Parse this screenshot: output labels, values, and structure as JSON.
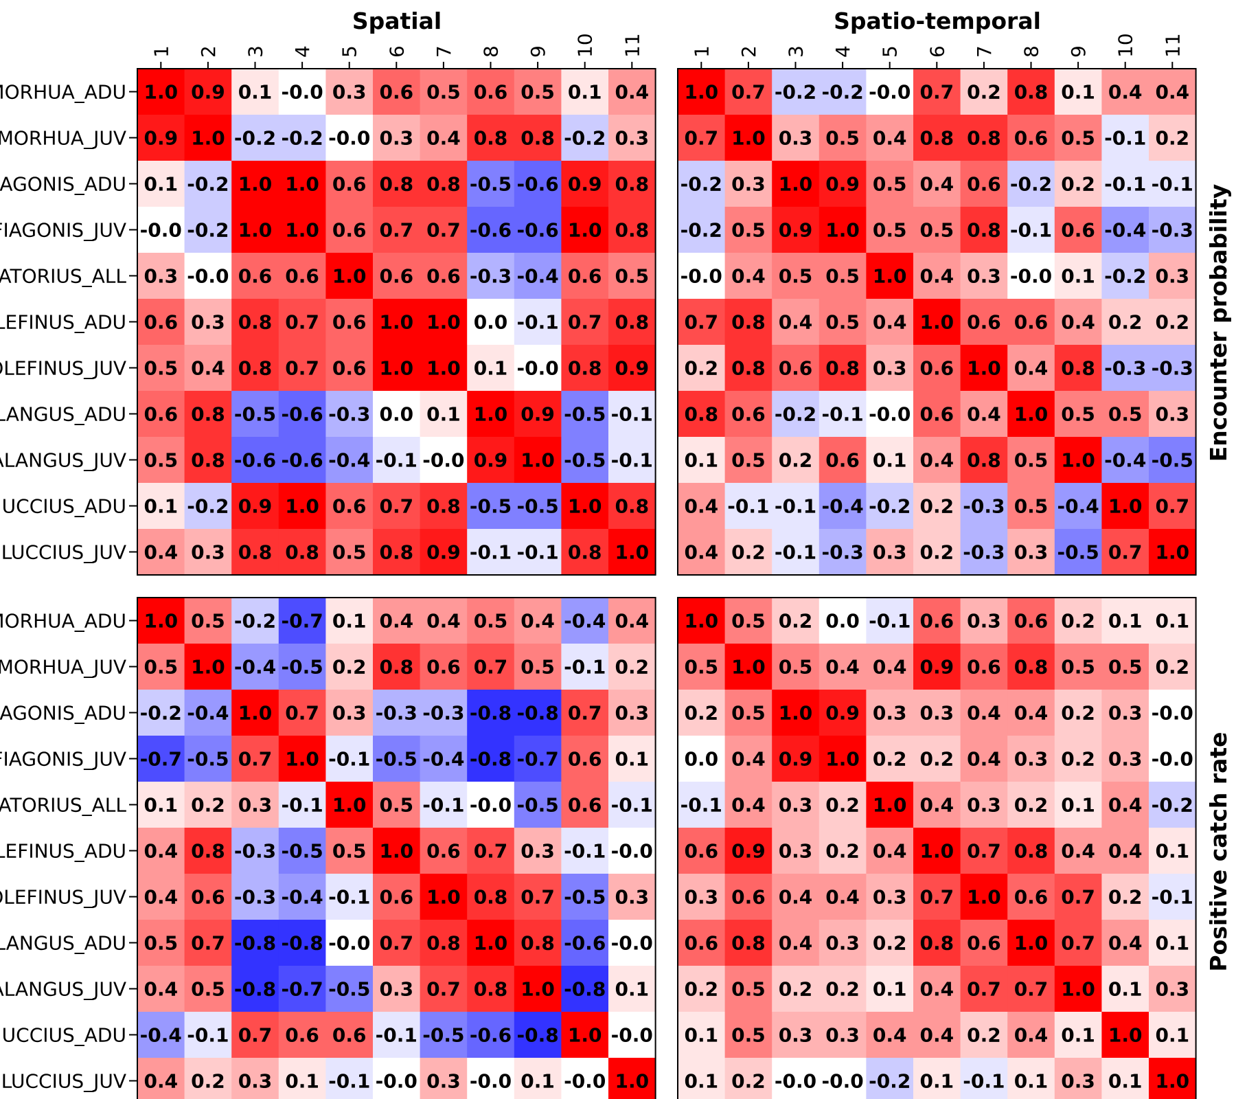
{
  "column_titles": [
    "Spatial",
    "Spatio-temporal"
  ],
  "row_titles": [
    "Encounter probability",
    "Positive catch rate"
  ],
  "colors": {
    "negative": "#0000ff",
    "zero": "#ffffff",
    "positive": "#ff0000",
    "border": "#000000"
  },
  "chart_data": [
    {
      "type": "heatmap",
      "panel": "Spatial / Encounter probability",
      "x_categories": [
        "1",
        "2",
        "3",
        "4",
        "5",
        "6",
        "7",
        "8",
        "9",
        "10",
        "11"
      ],
      "y_categories": [
        "MORHUA_ADU",
        "MORHUA_JUV",
        "AGONIS_ADU",
        "FIAGONIS_JUV",
        "ATORIUS_ALL",
        "LEFINUS_ADU",
        "OLEFINUS_JUV",
        "LANGUS_ADU",
        "ALANGUS_JUV",
        "UCCIUS_ADU",
        "LUCCIUS_JUV"
      ],
      "value_range": [
        -1,
        1
      ],
      "values": [
        [
          "1.0",
          "0.9",
          "0.1",
          "-0.0",
          "0.3",
          "0.6",
          "0.5",
          "0.6",
          "0.5",
          "0.1",
          "0.4"
        ],
        [
          "0.9",
          "1.0",
          "-0.2",
          "-0.2",
          "-0.0",
          "0.3",
          "0.4",
          "0.8",
          "0.8",
          "-0.2",
          "0.3"
        ],
        [
          "0.1",
          "-0.2",
          "1.0",
          "1.0",
          "0.6",
          "0.8",
          "0.8",
          "-0.5",
          "-0.6",
          "0.9",
          "0.8"
        ],
        [
          "-0.0",
          "-0.2",
          "1.0",
          "1.0",
          "0.6",
          "0.7",
          "0.7",
          "-0.6",
          "-0.6",
          "1.0",
          "0.8"
        ],
        [
          "0.3",
          "-0.0",
          "0.6",
          "0.6",
          "1.0",
          "0.6",
          "0.6",
          "-0.3",
          "-0.4",
          "0.6",
          "0.5"
        ],
        [
          "0.6",
          "0.3",
          "0.8",
          "0.7",
          "0.6",
          "1.0",
          "1.0",
          "0.0",
          "-0.1",
          "0.7",
          "0.8"
        ],
        [
          "0.5",
          "0.4",
          "0.8",
          "0.7",
          "0.6",
          "1.0",
          "1.0",
          "0.1",
          "-0.0",
          "0.8",
          "0.9"
        ],
        [
          "0.6",
          "0.8",
          "-0.5",
          "-0.6",
          "-0.3",
          "0.0",
          "0.1",
          "1.0",
          "0.9",
          "-0.5",
          "-0.1"
        ],
        [
          "0.5",
          "0.8",
          "-0.6",
          "-0.6",
          "-0.4",
          "-0.1",
          "-0.0",
          "0.9",
          "1.0",
          "-0.5",
          "-0.1"
        ],
        [
          "0.1",
          "-0.2",
          "0.9",
          "1.0",
          "0.6",
          "0.7",
          "0.8",
          "-0.5",
          "-0.5",
          "1.0",
          "0.8"
        ],
        [
          "0.4",
          "0.3",
          "0.8",
          "0.8",
          "0.5",
          "0.8",
          "0.9",
          "-0.1",
          "-0.1",
          "0.8",
          "1.0"
        ]
      ]
    },
    {
      "type": "heatmap",
      "panel": "Spatio-temporal / Encounter probability",
      "x_categories": [
        "1",
        "2",
        "3",
        "4",
        "5",
        "6",
        "7",
        "8",
        "9",
        "10",
        "11"
      ],
      "value_range": [
        -1,
        1
      ],
      "values": [
        [
          "1.0",
          "0.7",
          "-0.2",
          "-0.2",
          "-0.0",
          "0.7",
          "0.2",
          "0.8",
          "0.1",
          "0.4",
          "0.4"
        ],
        [
          "0.7",
          "1.0",
          "0.3",
          "0.5",
          "0.4",
          "0.8",
          "0.8",
          "0.6",
          "0.5",
          "-0.1",
          "0.2"
        ],
        [
          "-0.2",
          "0.3",
          "1.0",
          "0.9",
          "0.5",
          "0.4",
          "0.6",
          "-0.2",
          "0.2",
          "-0.1",
          "-0.1"
        ],
        [
          "-0.2",
          "0.5",
          "0.9",
          "1.0",
          "0.5",
          "0.5",
          "0.8",
          "-0.1",
          "0.6",
          "-0.4",
          "-0.3"
        ],
        [
          "-0.0",
          "0.4",
          "0.5",
          "0.5",
          "1.0",
          "0.4",
          "0.3",
          "-0.0",
          "0.1",
          "-0.2",
          "0.3"
        ],
        [
          "0.7",
          "0.8",
          "0.4",
          "0.5",
          "0.4",
          "1.0",
          "0.6",
          "0.6",
          "0.4",
          "0.2",
          "0.2"
        ],
        [
          "0.2",
          "0.8",
          "0.6",
          "0.8",
          "0.3",
          "0.6",
          "1.0",
          "0.4",
          "0.8",
          "-0.3",
          "-0.3"
        ],
        [
          "0.8",
          "0.6",
          "-0.2",
          "-0.1",
          "-0.0",
          "0.6",
          "0.4",
          "1.0",
          "0.5",
          "0.5",
          "0.3"
        ],
        [
          "0.1",
          "0.5",
          "0.2",
          "0.6",
          "0.1",
          "0.4",
          "0.8",
          "0.5",
          "1.0",
          "-0.4",
          "-0.5"
        ],
        [
          "0.4",
          "-0.1",
          "-0.1",
          "-0.4",
          "-0.2",
          "0.2",
          "-0.3",
          "0.5",
          "-0.4",
          "1.0",
          "0.7"
        ],
        [
          "0.4",
          "0.2",
          "-0.1",
          "-0.3",
          "0.3",
          "0.2",
          "-0.3",
          "0.3",
          "-0.5",
          "0.7",
          "1.0"
        ]
      ]
    },
    {
      "type": "heatmap",
      "panel": "Spatial / Positive catch rate",
      "y_categories": [
        "MORHUA_ADU",
        "MORHUA_JUV",
        "AGONIS_ADU",
        "FIAGONIS_JUV",
        "ATORIUS_ALL",
        "LEFINUS_ADU",
        "OLEFINUS_JUV",
        "LANGUS_ADU",
        "ALANGUS_JUV",
        "UCCIUS_ADU",
        "LUCCIUS_JUV"
      ],
      "value_range": [
        -1,
        1
      ],
      "values": [
        [
          "1.0",
          "0.5",
          "-0.2",
          "-0.7",
          "0.1",
          "0.4",
          "0.4",
          "0.5",
          "0.4",
          "-0.4",
          "0.4"
        ],
        [
          "0.5",
          "1.0",
          "-0.4",
          "-0.5",
          "0.2",
          "0.8",
          "0.6",
          "0.7",
          "0.5",
          "-0.1",
          "0.2"
        ],
        [
          "-0.2",
          "-0.4",
          "1.0",
          "0.7",
          "0.3",
          "-0.3",
          "-0.3",
          "-0.8",
          "-0.8",
          "0.7",
          "0.3"
        ],
        [
          "-0.7",
          "-0.5",
          "0.7",
          "1.0",
          "-0.1",
          "-0.5",
          "-0.4",
          "-0.8",
          "-0.7",
          "0.6",
          "0.1"
        ],
        [
          "0.1",
          "0.2",
          "0.3",
          "-0.1",
          "1.0",
          "0.5",
          "-0.1",
          "-0.0",
          "-0.5",
          "0.6",
          "-0.1"
        ],
        [
          "0.4",
          "0.8",
          "-0.3",
          "-0.5",
          "0.5",
          "1.0",
          "0.6",
          "0.7",
          "0.3",
          "-0.1",
          "-0.0"
        ],
        [
          "0.4",
          "0.6",
          "-0.3",
          "-0.4",
          "-0.1",
          "0.6",
          "1.0",
          "0.8",
          "0.7",
          "-0.5",
          "0.3"
        ],
        [
          "0.5",
          "0.7",
          "-0.8",
          "-0.8",
          "-0.0",
          "0.7",
          "0.8",
          "1.0",
          "0.8",
          "-0.6",
          "-0.0"
        ],
        [
          "0.4",
          "0.5",
          "-0.8",
          "-0.7",
          "-0.5",
          "0.3",
          "0.7",
          "0.8",
          "1.0",
          "-0.8",
          "0.1"
        ],
        [
          "-0.4",
          "-0.1",
          "0.7",
          "0.6",
          "0.6",
          "-0.1",
          "-0.5",
          "-0.6",
          "-0.8",
          "1.0",
          "-0.0"
        ],
        [
          "0.4",
          "0.2",
          "0.3",
          "0.1",
          "-0.1",
          "-0.0",
          "0.3",
          "-0.0",
          "0.1",
          "-0.0",
          "1.0"
        ]
      ]
    },
    {
      "type": "heatmap",
      "panel": "Spatio-temporal / Positive catch rate",
      "value_range": [
        -1,
        1
      ],
      "values": [
        [
          "1.0",
          "0.5",
          "0.2",
          "0.0",
          "-0.1",
          "0.6",
          "0.3",
          "0.6",
          "0.2",
          "0.1",
          "0.1"
        ],
        [
          "0.5",
          "1.0",
          "0.5",
          "0.4",
          "0.4",
          "0.9",
          "0.6",
          "0.8",
          "0.5",
          "0.5",
          "0.2"
        ],
        [
          "0.2",
          "0.5",
          "1.0",
          "0.9",
          "0.3",
          "0.3",
          "0.4",
          "0.4",
          "0.2",
          "0.3",
          "-0.0"
        ],
        [
          "0.0",
          "0.4",
          "0.9",
          "1.0",
          "0.2",
          "0.2",
          "0.4",
          "0.3",
          "0.2",
          "0.3",
          "-0.0"
        ],
        [
          "-0.1",
          "0.4",
          "0.3",
          "0.2",
          "1.0",
          "0.4",
          "0.3",
          "0.2",
          "0.1",
          "0.4",
          "-0.2"
        ],
        [
          "0.6",
          "0.9",
          "0.3",
          "0.2",
          "0.4",
          "1.0",
          "0.7",
          "0.8",
          "0.4",
          "0.4",
          "0.1"
        ],
        [
          "0.3",
          "0.6",
          "0.4",
          "0.4",
          "0.3",
          "0.7",
          "1.0",
          "0.6",
          "0.7",
          "0.2",
          "-0.1"
        ],
        [
          "0.6",
          "0.8",
          "0.4",
          "0.3",
          "0.2",
          "0.8",
          "0.6",
          "1.0",
          "0.7",
          "0.4",
          "0.1"
        ],
        [
          "0.2",
          "0.5",
          "0.2",
          "0.2",
          "0.1",
          "0.4",
          "0.7",
          "0.7",
          "1.0",
          "0.1",
          "0.3"
        ],
        [
          "0.1",
          "0.5",
          "0.3",
          "0.3",
          "0.4",
          "0.4",
          "0.2",
          "0.4",
          "0.1",
          "1.0",
          "0.1"
        ],
        [
          "0.1",
          "0.2",
          "-0.0",
          "-0.0",
          "-0.2",
          "0.1",
          "-0.1",
          "0.1",
          "0.3",
          "0.1",
          "1.0"
        ]
      ]
    }
  ]
}
